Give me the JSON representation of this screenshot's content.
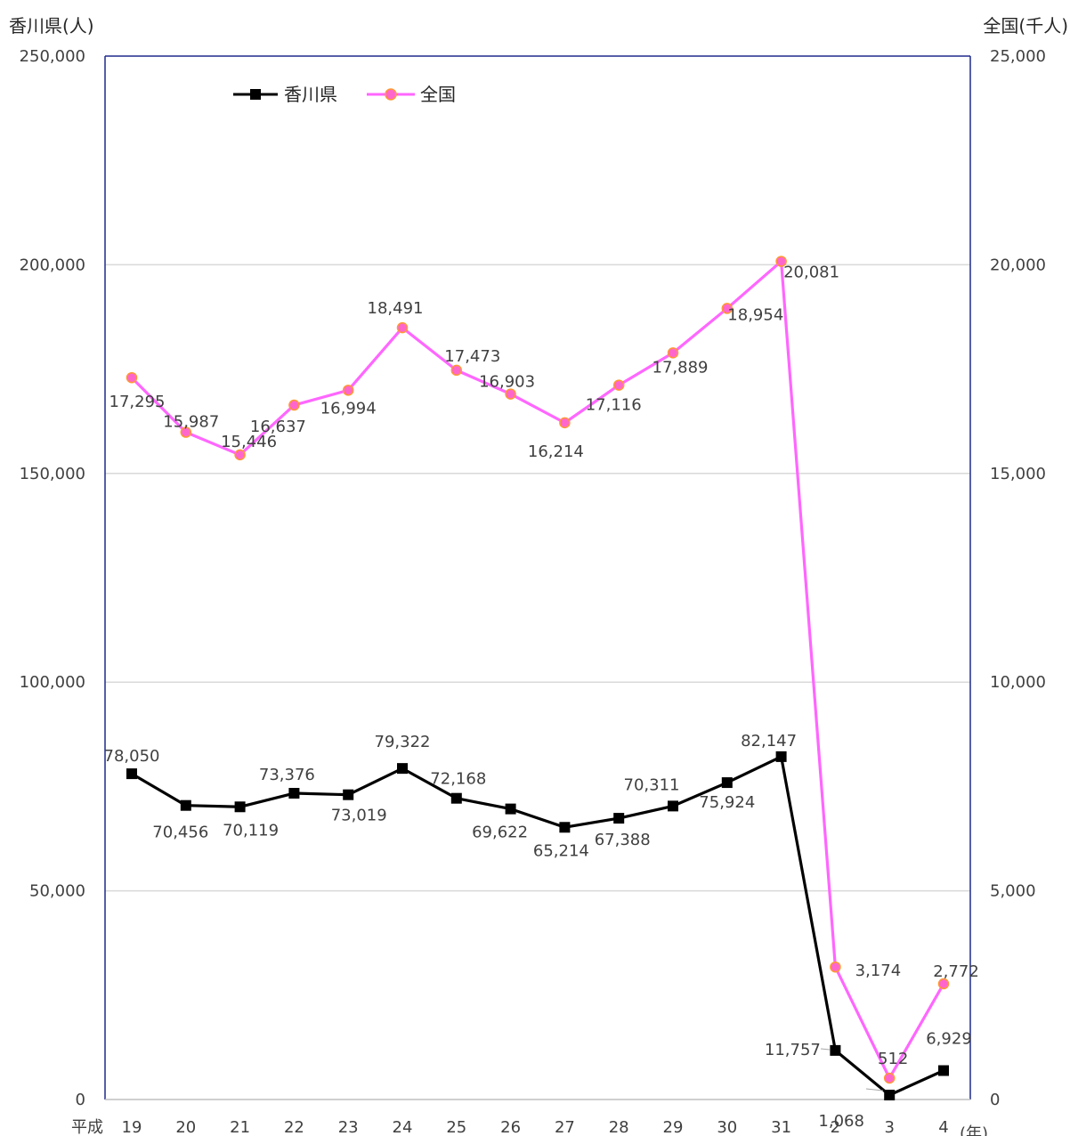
{
  "chart_data": {
    "type": "line",
    "left_axis_title": "香川県(人)",
    "right_axis_title": "全国(千人)",
    "x_unit_label": "(年)",
    "era_label": "平成",
    "categories": [
      "19",
      "20",
      "21",
      "22",
      "23",
      "24",
      "25",
      "26",
      "27",
      "28",
      "29",
      "30",
      "31",
      "2",
      "3",
      "4"
    ],
    "y_left": {
      "min": 0,
      "max": 250000,
      "ticks": [
        "0",
        "50,000",
        "100,000",
        "150,000",
        "200,000",
        "250,000"
      ]
    },
    "y_right": {
      "min": 0,
      "max": 25000,
      "ticks": [
        "0",
        "5,000",
        "10,000",
        "15,000",
        "20,000",
        "25,000"
      ]
    },
    "gridlines": true,
    "legend_position": "top-left",
    "series": [
      {
        "name": "香川県",
        "axis": "left",
        "color": "#000000",
        "marker": "square",
        "values": [
          78050,
          70456,
          70119,
          73376,
          73019,
          79322,
          72168,
          69622,
          65214,
          67388,
          70311,
          75924,
          82147,
          11757,
          1068,
          6929
        ],
        "labels": [
          "78,050",
          "70,456",
          "70,119",
          "73,376",
          "73,019",
          "79,322",
          "72,168",
          "69,622",
          "65,214",
          "67,388",
          "70,311",
          "75,924",
          "82,147",
          "11,757",
          "1,068",
          "6,929"
        ]
      },
      {
        "name": "全国",
        "axis": "right",
        "color": "#ff66ff",
        "marker_fill": "#ff66cc",
        "marker_stroke": "#ff9933",
        "marker": "circle",
        "values": [
          17295,
          15987,
          15446,
          16637,
          16994,
          18491,
          17473,
          16903,
          16214,
          17116,
          17889,
          18954,
          20081,
          3174,
          512,
          2772
        ],
        "labels": [
          "17,295",
          "15,987",
          "15,446",
          "16,637",
          "16,994",
          "18,491",
          "17,473",
          "16,903",
          "16,214",
          "17,116",
          "17,889",
          "18,954",
          "20,081",
          "3,174",
          "512",
          "2,772"
        ]
      }
    ],
    "axis_color": "#1f2a8c",
    "grid_color": "#d9d9d9"
  }
}
